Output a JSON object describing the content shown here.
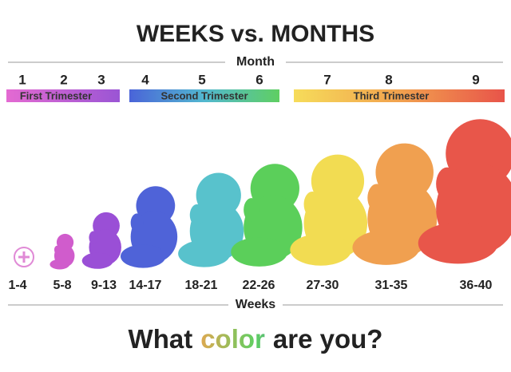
{
  "title": "WEEKS vs. MONTHS",
  "month_axis": {
    "label": "Month",
    "months": [
      "1",
      "2",
      "3",
      "4",
      "5",
      "6",
      "7",
      "8",
      "9"
    ]
  },
  "trimesters": [
    "First Trimester",
    "Second Trimester",
    "Third Trimester"
  ],
  "week_axis": {
    "label": "Weeks",
    "ranges": [
      "1-4",
      "5-8",
      "9-13",
      "14-17",
      "18-21",
      "22-26",
      "27-30",
      "31-35",
      "36-40"
    ]
  },
  "question": {
    "before": "What",
    "highlight": "color",
    "after": "are you?"
  }
}
